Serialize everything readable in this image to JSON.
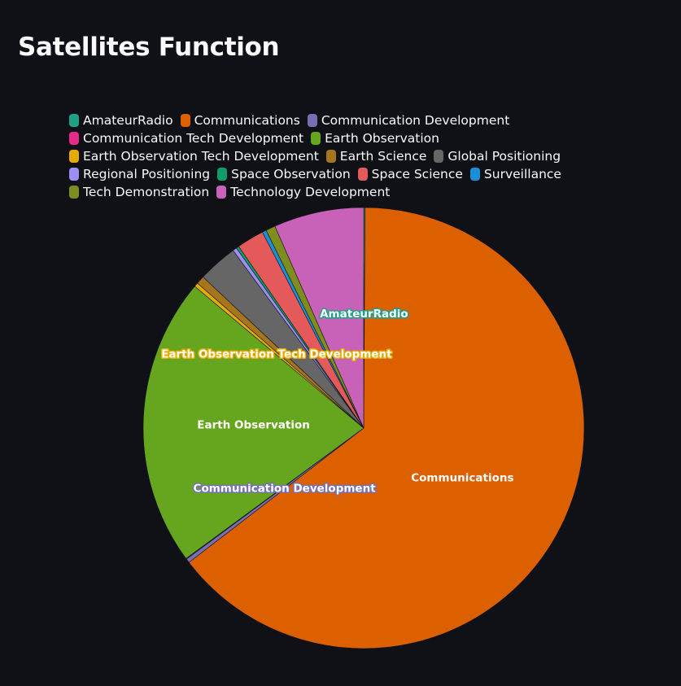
{
  "page": {
    "title": "Satellites Function"
  },
  "chart_data": {
    "type": "pie",
    "title": "Satellites Function",
    "legend_placement": "top-left",
    "slices": [
      {
        "name": "AmateurRadio",
        "value": 0.1,
        "color": "#1fa188",
        "label": "AmateurRadio"
      },
      {
        "name": "Communications",
        "value": 64.5,
        "color": "#dc5f00",
        "label": "Communications"
      },
      {
        "name": "Communication Development",
        "value": 0.3,
        "color": "#7570b3",
        "label": "Communication Development"
      },
      {
        "name": "Communication Tech Development",
        "value": 0.05,
        "color": "#e7298a",
        "label": ""
      },
      {
        "name": "Earth Observation",
        "value": 21.2,
        "color": "#66a61e",
        "label": "Earth Observation"
      },
      {
        "name": "Earth Observation Tech Development",
        "value": 0.3,
        "color": "#e6ab02",
        "label": "Earth Observation Tech Development"
      },
      {
        "name": "Earth Science",
        "value": 0.6,
        "color": "#a6761d",
        "label": ""
      },
      {
        "name": "Global Positioning",
        "value": 2.9,
        "color": "#666666",
        "label": ""
      },
      {
        "name": "Regional Positioning",
        "value": 0.3,
        "color": "#9d8ff2",
        "label": ""
      },
      {
        "name": "Space Observation",
        "value": 0.2,
        "color": "#0e9c6a",
        "label": ""
      },
      {
        "name": "Space Science",
        "value": 2.0,
        "color": "#e45a5a",
        "label": ""
      },
      {
        "name": "Surveillance",
        "value": 0.3,
        "color": "#1a8fd6",
        "label": ""
      },
      {
        "name": "Tech Demonstration",
        "value": 0.7,
        "color": "#7f8c1e",
        "label": ""
      },
      {
        "name": "Technology Development",
        "value": 6.6,
        "color": "#c862b8",
        "label": ""
      }
    ],
    "legend_rows": [
      [
        0,
        1,
        2
      ],
      [
        3,
        4
      ],
      [
        5,
        6,
        7
      ],
      [
        8,
        9,
        10,
        11
      ],
      [
        12,
        13
      ]
    ]
  }
}
